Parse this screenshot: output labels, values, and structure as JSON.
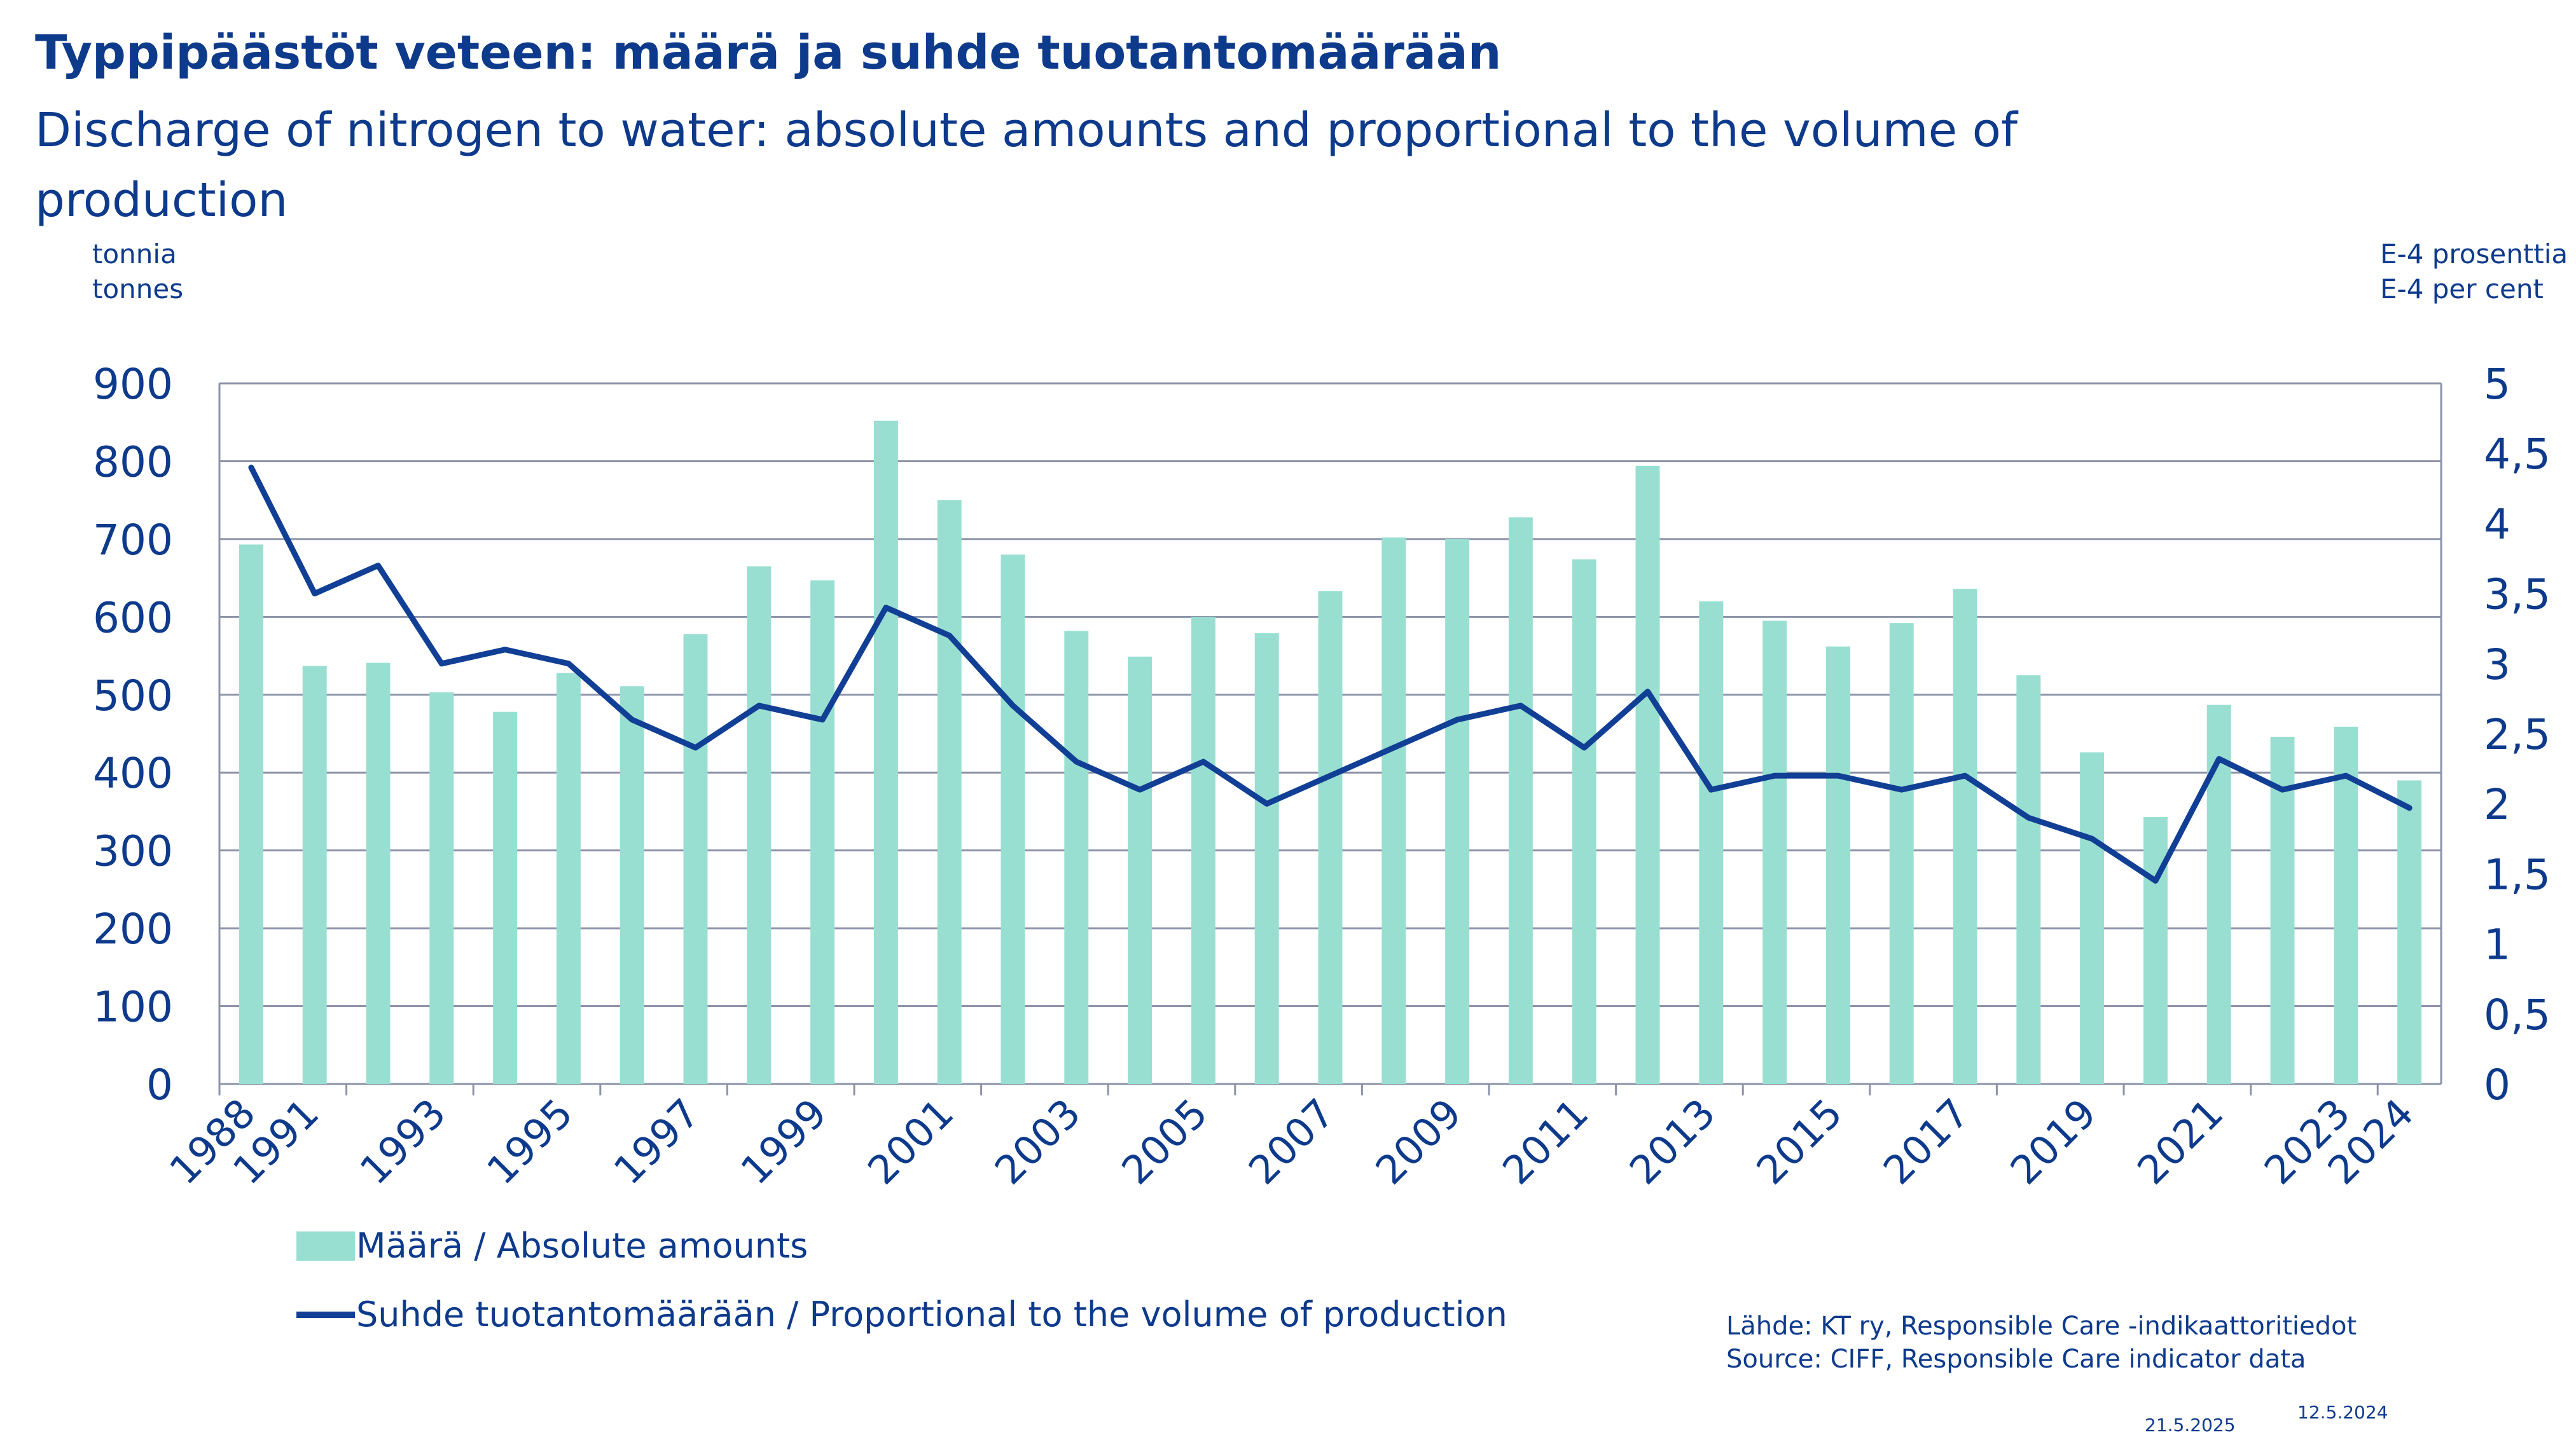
{
  "header": {
    "title_fi": "Typpipäästöt veteen: määrä ja suhde tuotantomäärään",
    "title_en": "Discharge of nitrogen to water: absolute amounts and proportional to the volume of production"
  },
  "units": {
    "left_line1": "tonnia",
    "left_line2": "tonnes",
    "right_line1": "E-4 prosenttia",
    "right_line2": "E-4 per cent"
  },
  "legend": {
    "bar_label": "Määrä / Absolute amounts",
    "line_label": "Suhde tuotantomäärään  /  Proportional to the volume of production"
  },
  "source": {
    "line1": "Lähde: KT ry, Responsible Care -indikaattoritiedot",
    "line2": "Source: CIFF, Responsible Care indicator data"
  },
  "dates": {
    "date1": "21.5.2025",
    "date2": "12.5.2024"
  },
  "colors": {
    "bars": "#98dfd1",
    "line": "#113f95",
    "text": "#0e3a8c",
    "grid": "#8c93a8"
  },
  "chart_data": {
    "type": "bar",
    "categories": [
      "1988",
      "1991",
      "",
      "1993",
      "",
      "1995",
      "",
      "1997",
      "",
      "1999",
      "",
      "2001",
      "",
      "2003",
      "",
      "2005",
      "",
      "2007",
      "",
      "2009",
      "",
      "2011",
      "",
      "2013",
      "",
      "2015",
      "",
      "2017",
      "",
      "2019",
      "",
      "2021",
      "",
      "2023",
      "2024"
    ],
    "x_tick_labels": [
      "1988",
      "1991",
      "1993",
      "1995",
      "1997",
      "1999",
      "2001",
      "2003",
      "2005",
      "2007",
      "2009",
      "2011",
      "2013",
      "2015",
      "2017",
      "2019",
      "2021",
      "2023",
      "2024"
    ],
    "series": [
      {
        "name": "Määrä / Absolute amounts",
        "type": "bar",
        "axis": "left",
        "values": [
          693,
          537,
          541,
          503,
          478,
          528,
          511,
          578,
          665,
          647,
          852,
          750,
          680,
          582,
          549,
          600,
          579,
          633,
          702,
          700,
          728,
          674,
          794,
          620,
          595,
          562,
          592,
          636,
          525,
          426,
          343,
          487,
          446,
          459,
          390
        ]
      },
      {
        "name": "Suhde tuotantomäärään  /  Proportional to the volume of production",
        "type": "line",
        "axis": "right",
        "values": [
          4.4,
          3.5,
          3.7,
          3.0,
          3.1,
          3.0,
          2.6,
          2.4,
          2.7,
          2.6,
          3.4,
          3.2,
          2.7,
          2.3,
          2.1,
          2.3,
          2.0,
          2.2,
          2.4,
          2.6,
          2.7,
          2.4,
          2.8,
          2.1,
          2.2,
          2.2,
          2.1,
          2.2,
          1.9,
          1.75,
          1.45,
          2.32,
          2.1,
          2.2,
          1.97
        ]
      }
    ],
    "y_left": {
      "min": 0,
      "max": 900,
      "ticks": [
        "0",
        "100",
        "200",
        "300",
        "400",
        "500",
        "600",
        "700",
        "800",
        "900"
      ]
    },
    "y_right": {
      "min": 0,
      "max": 5,
      "ticks": [
        "0",
        "0,5",
        "1",
        "1,5",
        "2",
        "2,5",
        "3",
        "3,5",
        "4",
        "4,5",
        "5"
      ]
    },
    "grid": true,
    "legend_position": "bottom-left"
  }
}
